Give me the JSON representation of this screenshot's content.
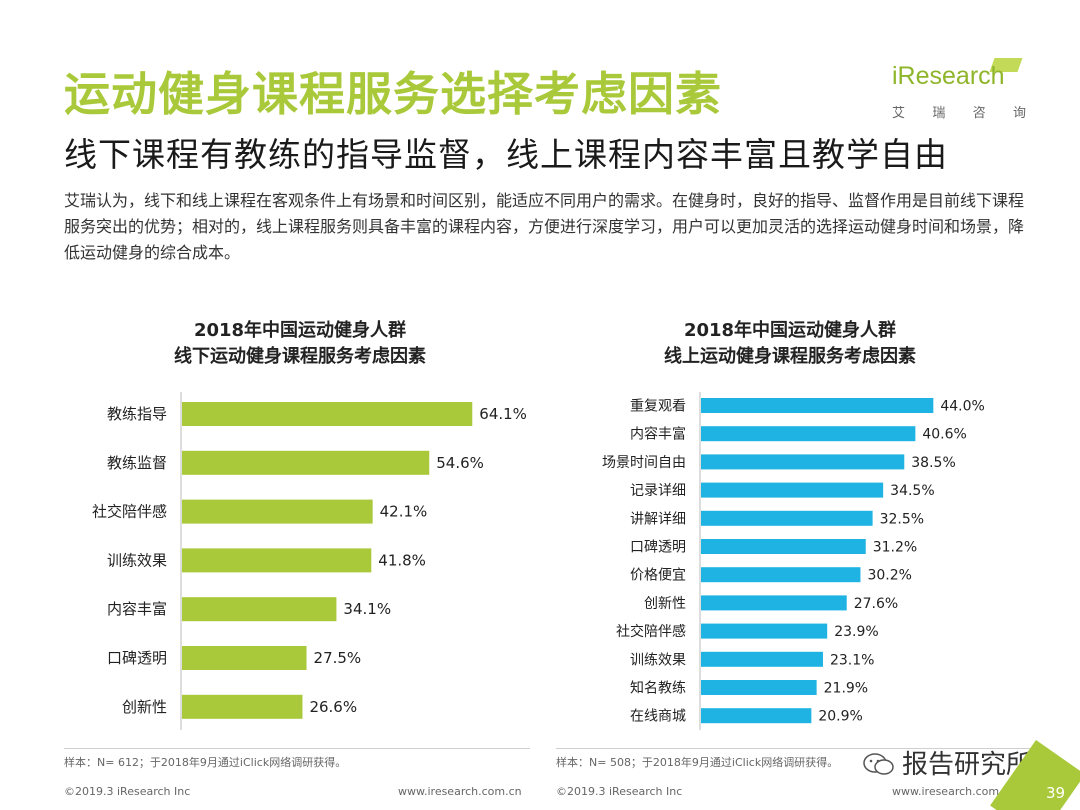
{
  "header": {
    "title": "运动健身课程服务选择考虑因素",
    "subtitle": "线下课程有教练的指导监督，线上课程内容丰富且教学自由",
    "intro": "艾瑞认为，线下和线上课程在客观条件上有场景和时间区别，能适应不同用户的需求。在健身时，良好的指导、监督作用是目前线下课程服务突出的优势；相对的，线上课程服务则具备丰富的课程内容，方便进行深度学习，用户可以更加灵活的选择运动健身时间和场景，降低运动健身的综合成本。"
  },
  "logo": {
    "main": "iResearch",
    "sub": [
      "艾",
      "瑞",
      "咨",
      "询"
    ]
  },
  "colors": {
    "left_bar": "#a9c93a",
    "right_bar": "#1fb3e3",
    "title": "#a9c93a"
  },
  "chart_data": [
    {
      "type": "bar",
      "orientation": "horizontal",
      "title_lines": [
        "2018年中国运动健身人群",
        "线下运动健身课程服务考虑因素"
      ],
      "categories": [
        "教练指导",
        "教练监督",
        "社交陪伴感",
        "训练效果",
        "内容丰富",
        "口碑透明",
        "创新性"
      ],
      "values": [
        64.1,
        54.6,
        42.1,
        41.8,
        34.1,
        27.5,
        26.6
      ],
      "value_labels": [
        "64.1%",
        "54.6%",
        "42.1%",
        "41.8%",
        "34.1%",
        "27.5%",
        "26.6%"
      ],
      "unit": "%",
      "xlim": [
        0,
        70
      ],
      "grid": false,
      "legend": "none",
      "note": "样本：N= 612；于2018年9月通过iClick网络调研获得。"
    },
    {
      "type": "bar",
      "orientation": "horizontal",
      "title_lines": [
        "2018年中国运动健身人群",
        "线上运动健身课程服务考虑因素"
      ],
      "categories": [
        "重复观看",
        "内容丰富",
        "场景时间自由",
        "记录详细",
        "讲解详细",
        "口碑透明",
        "价格便宜",
        "创新性",
        "社交陪伴感",
        "训练效果",
        "知名教练",
        "在线商城"
      ],
      "values": [
        44.0,
        40.6,
        38.5,
        34.5,
        32.5,
        31.2,
        30.2,
        27.6,
        23.9,
        23.1,
        21.9,
        20.9
      ],
      "value_labels": [
        "44.0%",
        "40.6%",
        "38.5%",
        "34.5%",
        "32.5%",
        "31.2%",
        "30.2%",
        "27.6%",
        "23.9%",
        "23.1%",
        "21.9%",
        "20.9%"
      ],
      "unit": "%",
      "xlim": [
        0,
        50
      ],
      "grid": false,
      "legend": "none",
      "note": "样本：N= 508；于2018年9月通过iClick网络调研获得。"
    }
  ],
  "footer": {
    "left_copyright": "©2019.3  iResearch Inc",
    "left_url": "www.iresearch.com.cn",
    "right_copyright": "©2019.3  iResearch Inc",
    "right_url": "www.iresearch.com.cn",
    "page_number": "39"
  },
  "watermark": {
    "text": "报告研究所",
    "icon": "wechat-icon"
  }
}
